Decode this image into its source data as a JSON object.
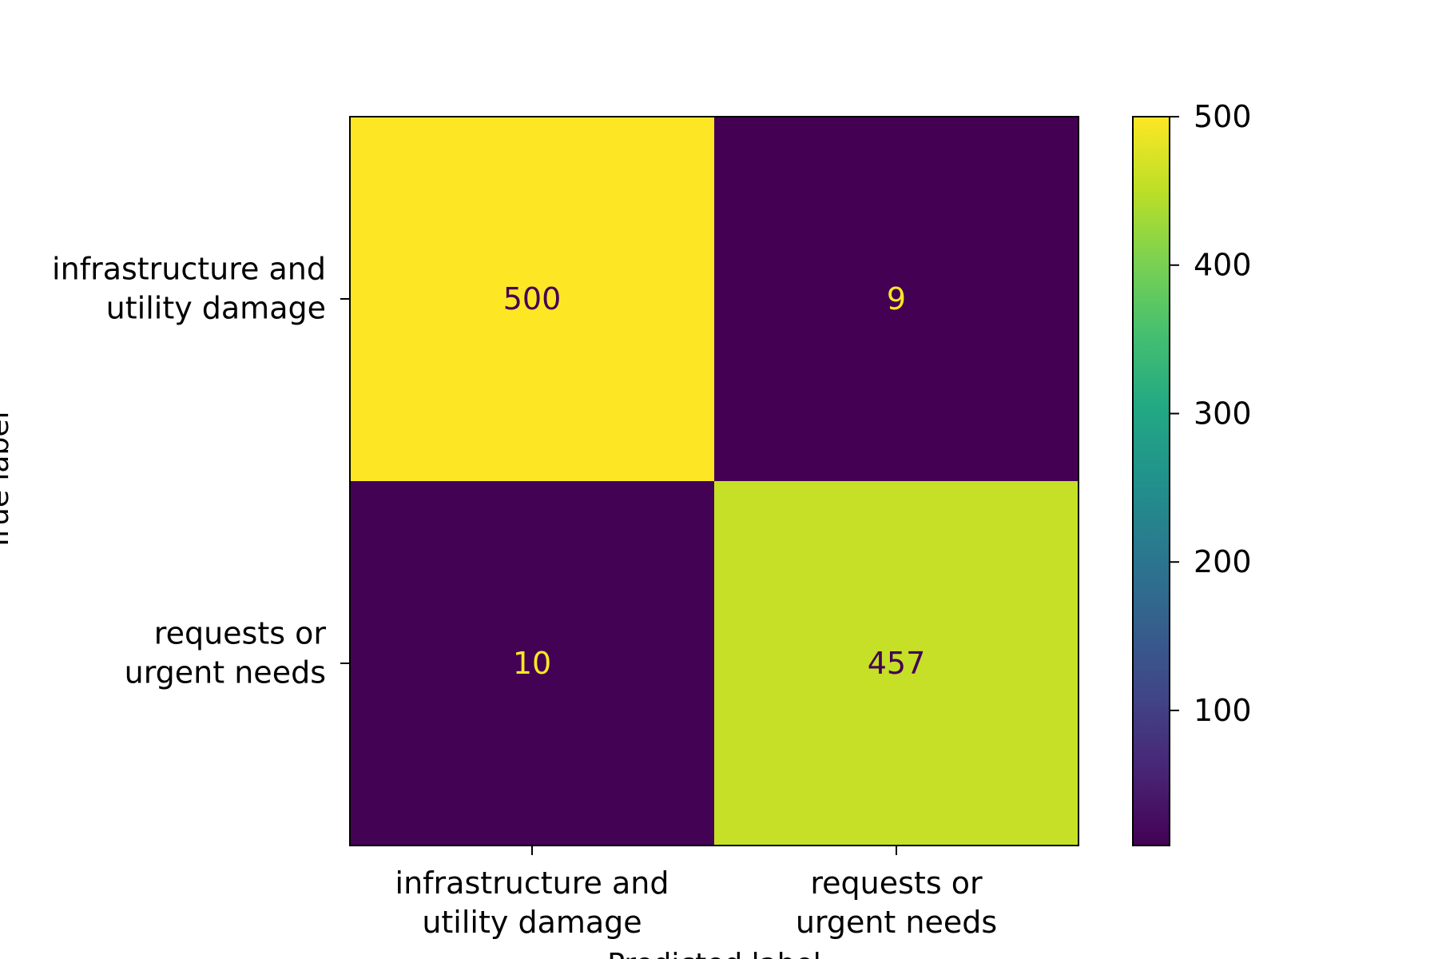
{
  "chart_data": {
    "type": "heatmap",
    "title": "",
    "xlabel": "Predicted label",
    "ylabel": "True label",
    "x_categories": [
      "infrastructure and\nutility damage",
      "requests or\nurgent needs"
    ],
    "y_categories": [
      "infrastructure and\nutility damage",
      "requests or\nurgent needs"
    ],
    "values": [
      [
        500,
        9
      ],
      [
        10,
        457
      ]
    ],
    "colormap": "viridis",
    "colorbar": {
      "min": 9,
      "max": 500,
      "ticks": [
        100,
        200,
        300,
        400,
        500
      ],
      "tick_labels": [
        "100",
        "200",
        "300",
        "400",
        "500"
      ]
    },
    "text_color_light": "#fde725",
    "text_color_dark": "#440154",
    "grid": false
  }
}
